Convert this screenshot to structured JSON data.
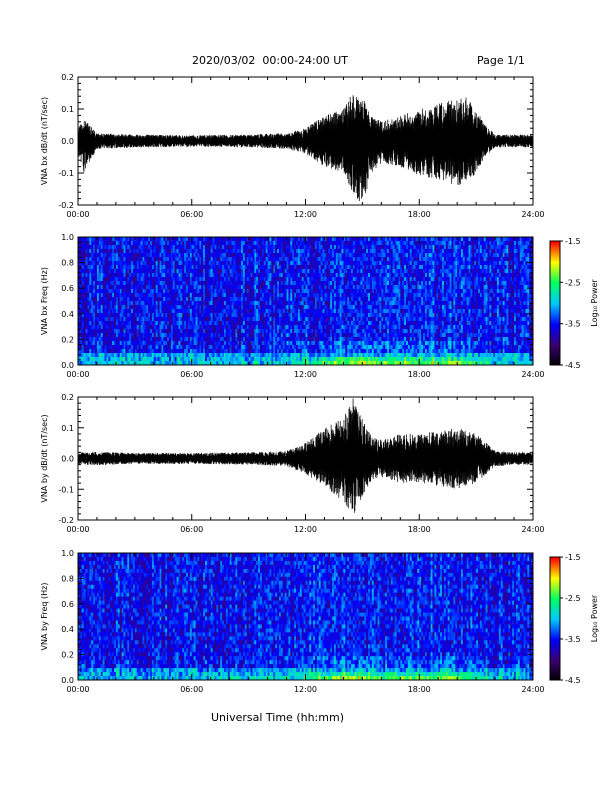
{
  "header": {
    "title": "2020/03/02  00:00-24:00 UT",
    "page": "Page 1/1"
  },
  "footer": {
    "xlabel": "Universal Time (hh:mm)"
  },
  "colors": {
    "trace": "#000000",
    "colormap": [
      "#000000",
      "#3a0070",
      "#0000ff",
      "#00c8ff",
      "#00ff60",
      "#ffff00",
      "#ff0000"
    ]
  },
  "chart_data": [
    {
      "type": "line",
      "ylabel": "VNA bx dB/dt (nT/sec)",
      "xlim": [
        0,
        24
      ],
      "ylim": [
        -0.2,
        0.2
      ],
      "x_ticks": [
        "00:00",
        "06:00",
        "12:00",
        "18:00",
        "24:00"
      ],
      "y_ticks": [
        "0.2",
        "0.1",
        "0.0",
        "-0.1",
        "-0.2"
      ],
      "envelope": {
        "hours": [
          0,
          0.3,
          1,
          3,
          6,
          9,
          11,
          12,
          13,
          14,
          14.5,
          15,
          15.5,
          16,
          17,
          18,
          19,
          20,
          20.5,
          21,
          21.5,
          22,
          24
        ],
        "max": [
          0.04,
          0.07,
          0.025,
          0.02,
          0.018,
          0.02,
          0.025,
          0.04,
          0.08,
          0.1,
          0.16,
          0.14,
          0.08,
          0.06,
          0.08,
          0.1,
          0.12,
          0.13,
          0.14,
          0.1,
          0.05,
          0.02,
          0.02
        ],
        "min": [
          -0.04,
          -0.1,
          -0.025,
          -0.02,
          -0.018,
          -0.02,
          -0.025,
          -0.04,
          -0.08,
          -0.1,
          -0.17,
          -0.2,
          -0.1,
          -0.07,
          -0.08,
          -0.11,
          -0.12,
          -0.14,
          -0.13,
          -0.1,
          -0.05,
          -0.02,
          -0.02
        ]
      }
    },
    {
      "type": "heatmap",
      "ylabel": "VNA bx Freq (Hz)",
      "colorbar_label": "Log₁₀ Power",
      "xlim": [
        0,
        24
      ],
      "ylim": [
        0,
        1.0
      ],
      "zlim": [
        -4.5,
        -1.5
      ],
      "x_ticks": [
        "00:00",
        "06:00",
        "12:00",
        "18:00",
        "24:00"
      ],
      "y_ticks": [
        "1.0",
        "0.8",
        "0.6",
        "0.4",
        "0.2",
        "0.0"
      ],
      "cb_ticks": [
        "-1.5",
        "-2.5",
        "-3.5",
        "-4.5"
      ],
      "activity_hours": [
        0,
        6,
        11,
        12,
        13,
        14,
        15,
        16,
        18,
        20,
        21,
        22,
        24
      ],
      "activity_level": [
        0.1,
        0.1,
        0.2,
        0.4,
        0.7,
        0.9,
        1.0,
        0.8,
        0.8,
        0.85,
        0.6,
        0.2,
        0.1
      ]
    },
    {
      "type": "line",
      "ylabel": "VNA by dB/dt (nT/sec)",
      "xlim": [
        0,
        24
      ],
      "ylim": [
        -0.2,
        0.2
      ],
      "x_ticks": [
        "00:00",
        "06:00",
        "12:00",
        "18:00",
        "24:00"
      ],
      "y_ticks": [
        "0.2",
        "0.1",
        "0.0",
        "-0.1",
        "-0.2"
      ],
      "envelope": {
        "hours": [
          0,
          1,
          3,
          6,
          9,
          11,
          12,
          13,
          14,
          14.5,
          15,
          15.5,
          16,
          17,
          18,
          19,
          20,
          21,
          22,
          24
        ],
        "max": [
          0.02,
          0.022,
          0.018,
          0.018,
          0.02,
          0.025,
          0.05,
          0.1,
          0.13,
          0.2,
          0.13,
          0.07,
          0.06,
          0.08,
          0.08,
          0.09,
          0.1,
          0.08,
          0.025,
          0.02
        ],
        "min": [
          -0.02,
          -0.022,
          -0.018,
          -0.018,
          -0.02,
          -0.025,
          -0.05,
          -0.09,
          -0.14,
          -0.19,
          -0.12,
          -0.07,
          -0.06,
          -0.08,
          -0.08,
          -0.09,
          -0.1,
          -0.08,
          -0.025,
          -0.02
        ]
      }
    },
    {
      "type": "heatmap",
      "ylabel": "VNA by Freq (Hz)",
      "colorbar_label": "Log₁₀ Power",
      "xlim": [
        0,
        24
      ],
      "ylim": [
        0,
        1.0
      ],
      "zlim": [
        -4.5,
        -1.5
      ],
      "x_ticks": [
        "00:00",
        "06:00",
        "12:00",
        "18:00",
        "24:00"
      ],
      "y_ticks": [
        "1.0",
        "0.8",
        "0.6",
        "0.4",
        "0.2",
        "0.0"
      ],
      "cb_ticks": [
        "-1.5",
        "-2.5",
        "-3.5",
        "-4.5"
      ],
      "activity_hours": [
        0,
        6,
        11,
        12,
        13,
        14,
        15,
        16,
        18,
        20,
        21,
        22,
        24
      ],
      "activity_level": [
        0.1,
        0.1,
        0.2,
        0.45,
        0.7,
        0.95,
        1.0,
        0.75,
        0.8,
        0.8,
        0.55,
        0.2,
        0.1
      ]
    }
  ]
}
